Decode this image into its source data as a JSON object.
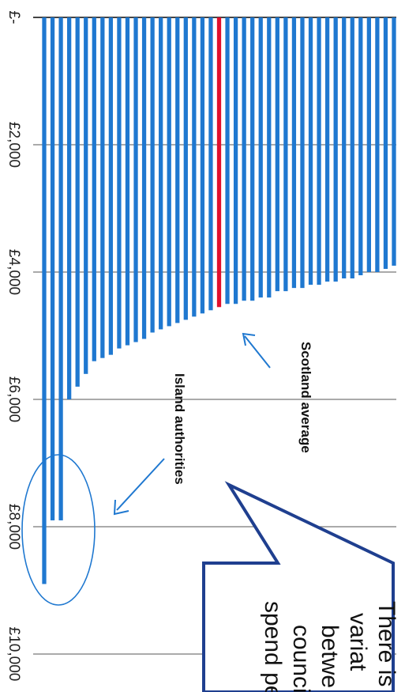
{
  "chart_data": {
    "type": "bar",
    "orientation": "vertical-downward",
    "title": "",
    "xlabel": "",
    "ylabel": "",
    "ylim": [
      0,
      10000
    ],
    "y_ticks": [
      "£-",
      "£2,000",
      "£4,000",
      "£6,000",
      "£8,000",
      "£10,000"
    ],
    "grid": true,
    "series": [
      {
        "values": [
          8900,
          7900,
          7900,
          6000,
          5800,
          5600,
          5400,
          5350,
          5300,
          5200,
          5150,
          5100,
          5050,
          4950,
          4900,
          4850,
          4800,
          4750,
          4700,
          4650,
          4600,
          4550,
          4500,
          4500,
          4450,
          4450,
          4400,
          4400,
          4300,
          4300,
          4250,
          4250,
          4200,
          4200,
          4150,
          4150,
          4100,
          4100,
          4050,
          4000,
          4000,
          3950,
          3900
        ],
        "highlight_index": 21,
        "color": "#1f78d0",
        "highlight_color": "#e0102e"
      }
    ],
    "annotations": [
      {
        "text": "Scotland average"
      },
      {
        "text": "Island authorities"
      }
    ],
    "callout_lines": [
      "There is",
      "variat",
      "betwe",
      "counci",
      "spend pe"
    ]
  }
}
